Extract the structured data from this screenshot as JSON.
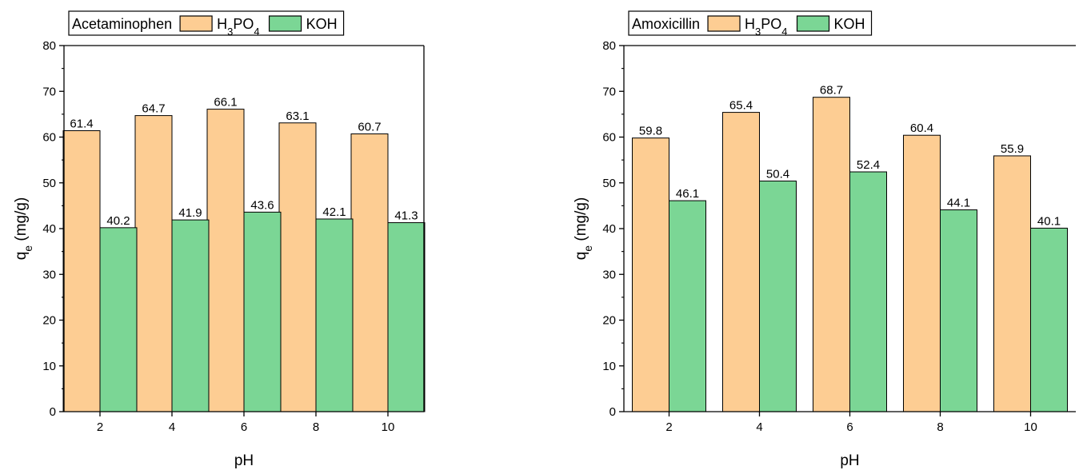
{
  "colors": {
    "h3po4": "#fdcd93",
    "koh": "#7bd695",
    "axis": "#000000"
  },
  "chart_data": [
    {
      "type": "bar",
      "legend_title": "Acetaminophen",
      "categories": [
        "2",
        "4",
        "6",
        "8",
        "10"
      ],
      "series": [
        {
          "name": "H3PO4",
          "legend": {
            "base": "H",
            "sub1": "3",
            "mid": "PO",
            "sub2": "4"
          },
          "values": [
            61.4,
            64.7,
            66.1,
            63.1,
            60.7
          ],
          "labels": [
            "61.4",
            "64.7",
            "66.1",
            "63.1",
            "60.7"
          ]
        },
        {
          "name": "KOH",
          "legend": {
            "base": "KOH"
          },
          "values": [
            40.2,
            41.9,
            43.6,
            42.1,
            41.3
          ],
          "labels": [
            "40.2",
            "41.9",
            "43.6",
            "42.1",
            "41.3"
          ]
        }
      ],
      "xlabel": "pH",
      "ylabel": {
        "base": "q",
        "sub": "e",
        "rest": " (mg/g)"
      },
      "ylim": [
        0,
        80
      ],
      "yticks": [
        "0",
        "10",
        "20",
        "30",
        "40",
        "50",
        "60",
        "70",
        "80"
      ],
      "grid": false,
      "legend_position": "top-left",
      "frame": "full-box"
    },
    {
      "type": "bar",
      "legend_title": "Amoxicillin",
      "categories": [
        "2",
        "4",
        "6",
        "8",
        "10"
      ],
      "series": [
        {
          "name": "H3PO4",
          "legend": {
            "base": "H",
            "sub1": "3",
            "mid": "PO",
            "sub2": "4"
          },
          "values": [
            59.8,
            65.4,
            68.7,
            60.4,
            55.9
          ],
          "labels": [
            "59.8",
            "65.4",
            "68.7",
            "60.4",
            "55.9"
          ]
        },
        {
          "name": "KOH",
          "legend": {
            "base": "KOH"
          },
          "values": [
            46.1,
            50.4,
            52.4,
            44.1,
            40.1
          ],
          "labels": [
            "46.1",
            "50.4",
            "52.4",
            "44.1",
            "40.1"
          ]
        }
      ],
      "xlabel": "pH",
      "ylabel": {
        "base": "q",
        "sub": "e",
        "rest": " (mg/g)"
      },
      "ylim": [
        0,
        80
      ],
      "yticks": [
        "0",
        "10",
        "20",
        "30",
        "40",
        "50",
        "60",
        "70",
        "80"
      ],
      "grid": false,
      "legend_position": "top-left",
      "frame": "left-bottom-top"
    }
  ]
}
